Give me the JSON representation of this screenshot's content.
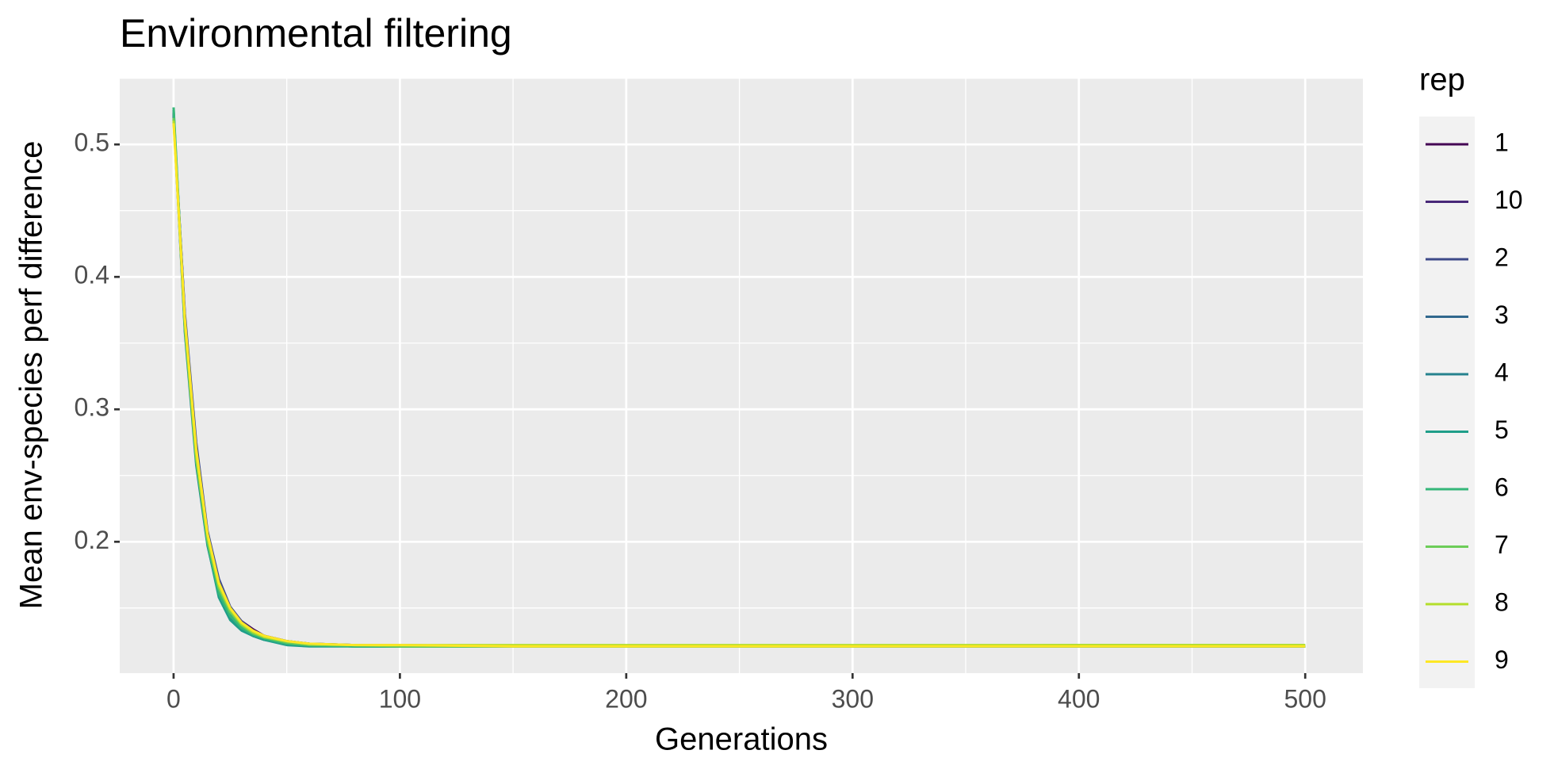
{
  "chart_data": {
    "type": "line",
    "title": "Environmental filtering",
    "xlabel": "Generations",
    "ylabel": "Mean env-species perf difference",
    "legend_title": "rep",
    "legend": "right",
    "grid": true,
    "xlim": [
      -23.8,
      525.5
    ],
    "xticks": [
      0,
      100,
      200,
      300,
      400,
      500
    ],
    "ylim": [
      0.1008,
      0.5504
    ],
    "yticks": [
      0.2,
      0.3,
      0.4,
      0.5
    ],
    "x": [
      0,
      5,
      10,
      15,
      20,
      25,
      30,
      35,
      40,
      50,
      60,
      80,
      100,
      150,
      200,
      300,
      400,
      500
    ],
    "series": [
      {
        "name": "1",
        "color": "#440154",
        "values": [
          0.521,
          0.37,
          0.27,
          0.205,
          0.17,
          0.15,
          0.14,
          0.134,
          0.129,
          0.125,
          0.123,
          0.122,
          0.121,
          0.121,
          0.121,
          0.121,
          0.121,
          0.121
        ]
      },
      {
        "name": "10",
        "color": "#482878",
        "values": [
          0.523,
          0.365,
          0.268,
          0.203,
          0.168,
          0.149,
          0.139,
          0.133,
          0.128,
          0.124,
          0.122,
          0.122,
          0.121,
          0.121,
          0.121,
          0.121,
          0.121,
          0.121
        ]
      },
      {
        "name": "2",
        "color": "#3E4A89",
        "values": [
          0.519,
          0.372,
          0.275,
          0.208,
          0.172,
          0.151,
          0.14,
          0.133,
          0.129,
          0.125,
          0.123,
          0.122,
          0.122,
          0.121,
          0.121,
          0.121,
          0.121,
          0.121
        ]
      },
      {
        "name": "3",
        "color": "#31688E",
        "values": [
          0.524,
          0.36,
          0.262,
          0.2,
          0.163,
          0.146,
          0.136,
          0.131,
          0.127,
          0.124,
          0.122,
          0.121,
          0.121,
          0.121,
          0.121,
          0.121,
          0.121,
          0.121
        ]
      },
      {
        "name": "4",
        "color": "#26828E",
        "values": [
          0.522,
          0.358,
          0.258,
          0.197,
          0.16,
          0.143,
          0.134,
          0.129,
          0.126,
          0.123,
          0.122,
          0.121,
          0.121,
          0.121,
          0.121,
          0.121,
          0.121,
          0.121
        ]
      },
      {
        "name": "5",
        "color": "#1F9E89",
        "values": [
          0.526,
          0.362,
          0.26,
          0.198,
          0.158,
          0.141,
          0.133,
          0.129,
          0.126,
          0.122,
          0.121,
          0.121,
          0.121,
          0.121,
          0.121,
          0.121,
          0.121,
          0.121
        ]
      },
      {
        "name": "6",
        "color": "#35B779",
        "values": [
          0.528,
          0.364,
          0.263,
          0.199,
          0.161,
          0.144,
          0.135,
          0.13,
          0.127,
          0.123,
          0.122,
          0.121,
          0.121,
          0.121,
          0.121,
          0.121,
          0.121,
          0.121
        ]
      },
      {
        "name": "7",
        "color": "#6DCD59",
        "values": [
          0.52,
          0.361,
          0.262,
          0.201,
          0.165,
          0.147,
          0.137,
          0.131,
          0.128,
          0.124,
          0.122,
          0.122,
          0.121,
          0.121,
          0.121,
          0.121,
          0.122,
          0.122
        ]
      },
      {
        "name": "8",
        "color": "#B4DE2C",
        "values": [
          0.518,
          0.366,
          0.266,
          0.204,
          0.167,
          0.149,
          0.138,
          0.132,
          0.128,
          0.125,
          0.123,
          0.122,
          0.122,
          0.122,
          0.122,
          0.122,
          0.122,
          0.122
        ]
      },
      {
        "name": "9",
        "color": "#FDE725",
        "values": [
          0.516,
          0.368,
          0.27,
          0.206,
          0.169,
          0.15,
          0.139,
          0.133,
          0.129,
          0.125,
          0.123,
          0.122,
          0.122,
          0.121,
          0.121,
          0.121,
          0.121,
          0.121
        ]
      }
    ]
  }
}
